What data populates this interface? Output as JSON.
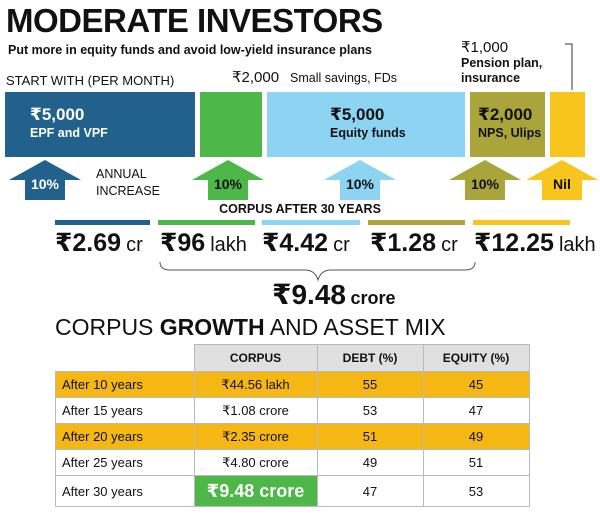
{
  "header": {
    "title": "MODERATE INVESTORS",
    "subtitle": "Put more in equity funds and avoid low-yield insurance plans"
  },
  "start_label": "START WITH (PER MONTH)",
  "increase_label": "ANNUAL INCREASE",
  "investments": [
    {
      "amount": "₹5,000",
      "label": "EPF and VPF",
      "color": "#21618c",
      "increase": "10%",
      "corpus_amount": "₹2.69",
      "corpus_unit": "cr"
    },
    {
      "amount": "₹2,000",
      "label": "Small savings, FDs",
      "color": "#4db748",
      "increase": "10%",
      "corpus_amount": "₹96",
      "corpus_unit": "lakh"
    },
    {
      "amount": "₹5,000",
      "label": "Equity funds",
      "color": "#8dd3f2",
      "increase": "10%",
      "corpus_amount": "₹4.42",
      "corpus_unit": "cr"
    },
    {
      "amount": "₹2,000",
      "label": "NPS, Ulips",
      "color": "#a9a53a",
      "increase": "10%",
      "corpus_amount": "₹1.28",
      "corpus_unit": "cr"
    },
    {
      "amount": "₹1,000",
      "label": "Pension plan, insurance",
      "color": "#f7c51e",
      "increase": "Nil",
      "corpus_amount": "₹12.25",
      "corpus_unit": "lakh"
    }
  ],
  "corpus_heading": "CORPUS AFTER 30 YEARS",
  "total": {
    "amount": "₹9.48",
    "unit": "crore"
  },
  "table": {
    "title": [
      "CORPUS",
      "GROWTH",
      "AND ASSET MIX"
    ],
    "columns": [
      "CORPUS",
      "DEBT (%)",
      "EQUITY (%)"
    ],
    "rows": [
      [
        "After 10 years",
        "₹44.56 lakh",
        "55",
        "45"
      ],
      [
        "After 15 years",
        "₹1.08 crore",
        "53",
        "47"
      ],
      [
        "After 20 years",
        "₹2.35 crore",
        "51",
        "49"
      ],
      [
        "After 25 years",
        "₹4.80 crore",
        "49",
        "51"
      ],
      [
        "After 30 years",
        "₹9.48 crore",
        "47",
        "53"
      ]
    ]
  }
}
